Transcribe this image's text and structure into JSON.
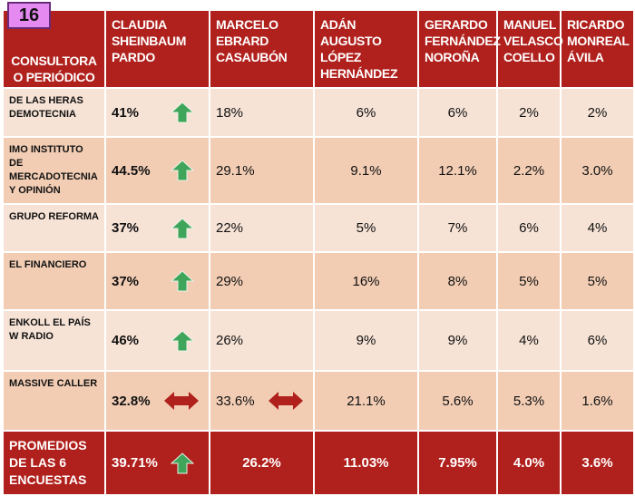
{
  "slide_number": "16",
  "headers": [
    "CONSULTORA O PERIÓDICO",
    "CLAUDIA SHEINBAUM PARDO",
    "MARCELO EBRARD CASAUBÓN",
    "ADÁN AUGUSTO LÓPEZ HERNÁNDEZ",
    "GERARDO FERNÁNDEZ NOROÑA",
    "MANUEL VELASCO COELLO",
    "RICARDO MONREAL ÁVILA"
  ],
  "rows": [
    {
      "source": "DE LAS HERAS DEMOTECNIA",
      "values": [
        "41%",
        "18%",
        "6%",
        "6%",
        "2%",
        "2%"
      ],
      "sheinbaum_icon": "arrow-up-icon"
    },
    {
      "source": "IMO INSTITUTO DE MERCADOTECNIA Y OPINIÓN",
      "values": [
        "44.5%",
        "29.1%",
        "9.1%",
        "12.1%",
        "2.2%",
        "3.0%"
      ],
      "sheinbaum_icon": "arrow-up-icon"
    },
    {
      "source": "GRUPO REFORMA",
      "values": [
        "37%",
        "22%",
        "5%",
        "7%",
        "6%",
        "4%"
      ],
      "sheinbaum_icon": "arrow-up-icon"
    },
    {
      "source": "EL FINANCIERO",
      "values": [
        "37%",
        "29%",
        "16%",
        "8%",
        "5%",
        "5%"
      ],
      "sheinbaum_icon": "arrow-up-icon"
    },
    {
      "source": "ENKOLL EL PAÍS W RADIO",
      "values": [
        "46%",
        "26%",
        "9%",
        "9%",
        "4%",
        "6%"
      ],
      "sheinbaum_icon": "arrow-up-icon"
    },
    {
      "source": "MASSIVE CALLER",
      "values": [
        "32.8%",
        "33.6%",
        "21.1%",
        "5.6%",
        "5.3%",
        "1.6%"
      ],
      "sheinbaum_icon": "double-arrow-icon",
      "ebrard_icon": "double-arrow-icon"
    }
  ],
  "average": {
    "label": "PROMEDIOS DE LAS 6 ENCUESTAS",
    "values": [
      "39.71%",
      "26.2%",
      "11.03%",
      "7.95%",
      "4.0%",
      "3.6%"
    ]
  },
  "colors": {
    "header": "#b0201c",
    "row_light": "#f7e3d6",
    "row_dark": "#f2cdb4",
    "up_arrow": "#3fa55a",
    "double_arrow": "#b0201c",
    "badge": "#e48af0"
  }
}
